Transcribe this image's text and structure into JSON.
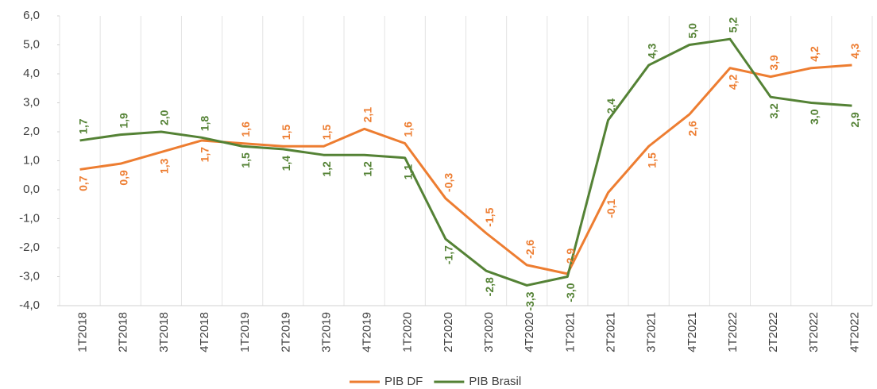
{
  "chart_data": {
    "type": "line",
    "categories": [
      "1T2018",
      "2T2018",
      "3T2018",
      "4T2018",
      "1T2019",
      "2T2019",
      "3T2019",
      "4T2019",
      "1T2020",
      "2T2020",
      "3T2020",
      "4T2020",
      "1T2021",
      "2T2021",
      "3T2021",
      "4T2021",
      "1T2022",
      "2T2022",
      "3T2022",
      "4T2022"
    ],
    "series": [
      {
        "name": "PIB DF",
        "color": "#ED7D31",
        "values": [
          0.7,
          0.9,
          1.3,
          1.7,
          1.6,
          1.5,
          1.5,
          2.1,
          1.6,
          -0.3,
          -1.5,
          -2.6,
          -2.9,
          -0.1,
          1.5,
          2.6,
          4.2,
          3.9,
          4.2,
          4.3
        ],
        "value_labels": [
          "0,7",
          "0,9",
          "1,3",
          "1,7",
          "1,6",
          "1,5",
          "1,5",
          "2,1",
          "1,6",
          "-0,3",
          "-1,5",
          "-2,6",
          "-2,9",
          "-0,1",
          "1,5",
          "2,6",
          "4,2",
          "3,9",
          "4,2",
          "4,3"
        ]
      },
      {
        "name": "PIB Brasil",
        "color": "#548235",
        "values": [
          1.7,
          1.9,
          2.0,
          1.8,
          1.5,
          1.4,
          1.2,
          1.2,
          1.1,
          -1.7,
          -2.8,
          -3.3,
          -3.0,
          2.4,
          4.3,
          5.0,
          5.2,
          3.2,
          3.0,
          2.9
        ],
        "value_labels": [
          "1,7",
          "1,9",
          "2,0",
          "1,8",
          "1,5",
          "1,4",
          "1,2",
          "1,2",
          "1,1",
          "-1,7",
          "-2,8",
          "-3,3",
          "-3,0",
          "2,4",
          "4,3",
          "5,0",
          "5,2",
          "3,2",
          "3,0",
          "2,9"
        ]
      }
    ],
    "ylim": [
      -4,
      6
    ],
    "yticks": [
      {
        "value": -4,
        "label": "-4,0"
      },
      {
        "value": -3,
        "label": "-3,0"
      },
      {
        "value": -2,
        "label": "-2,0"
      },
      {
        "value": -1,
        "label": "-1,0"
      },
      {
        "value": 0,
        "label": "0,0"
      },
      {
        "value": 1,
        "label": "1,0"
      },
      {
        "value": 2,
        "label": "2,0"
      },
      {
        "value": 3,
        "label": "3,0"
      },
      {
        "value": 4,
        "label": "4,0"
      },
      {
        "value": 5,
        "label": "5,0"
      },
      {
        "value": 6,
        "label": "6,0"
      }
    ],
    "grid": "x",
    "legend": "bottom"
  }
}
